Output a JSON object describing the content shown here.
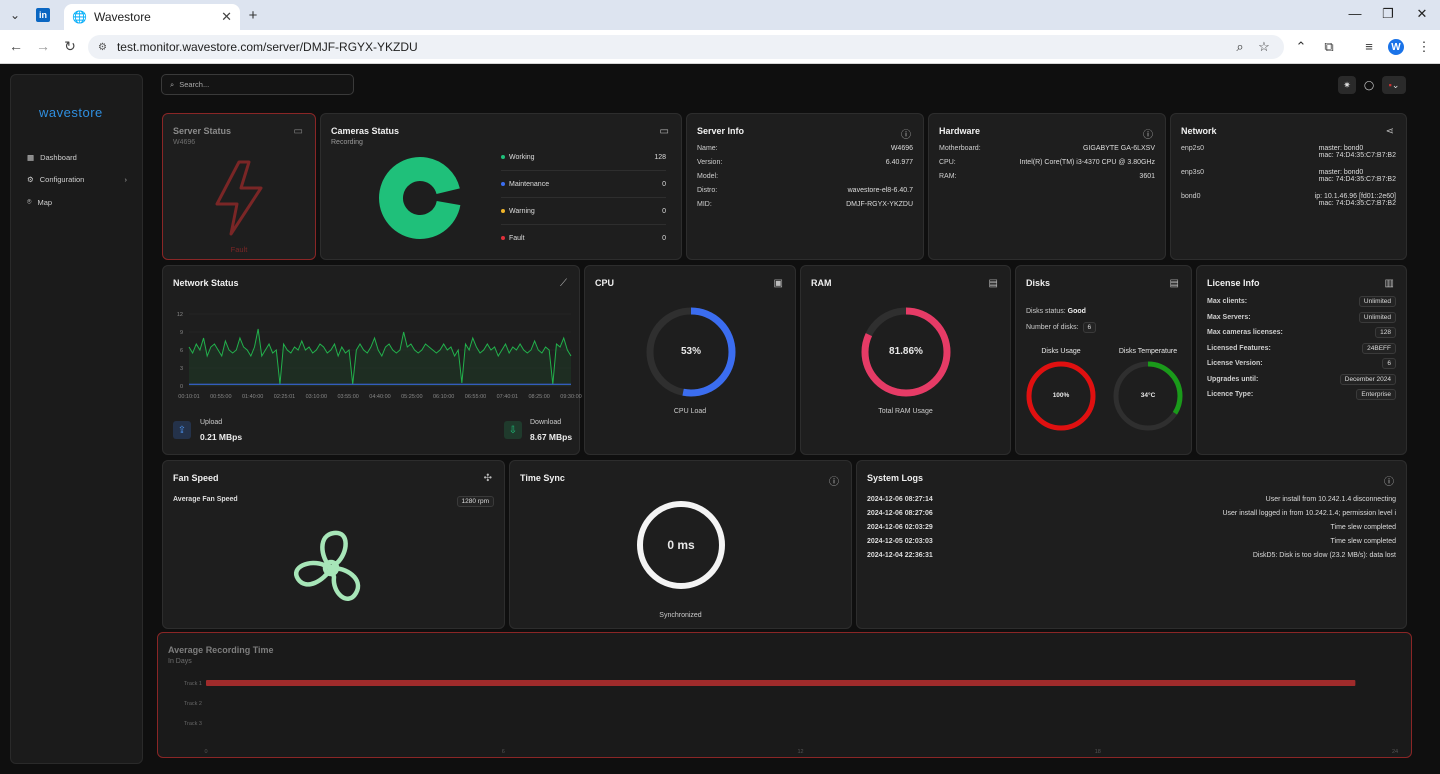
{
  "browser": {
    "tab_title": "Wavestore",
    "url": "test.monitor.wavestore.com/server/DMJF-RGYX-YKZDU",
    "profile_initial": "W"
  },
  "app": {
    "logo": "wavestore",
    "search_placeholder": "Search...",
    "sidebar": [
      {
        "label": "Dashboard",
        "icon": "grid-icon"
      },
      {
        "label": "Configuration",
        "icon": "gear-icon"
      },
      {
        "label": "Map",
        "icon": "map-pin-icon"
      }
    ]
  },
  "server_status": {
    "title": "Server Status",
    "id": "W4696",
    "state": "Fault"
  },
  "cameras_status": {
    "title": "Cameras Status",
    "subtitle": "Recording",
    "items": [
      {
        "label": "Working",
        "value": "128",
        "color": "#1fc07a"
      },
      {
        "label": "Maintenance",
        "value": "0",
        "color": "#3b6df0"
      },
      {
        "label": "Warning",
        "value": "0",
        "color": "#f0b429"
      },
      {
        "label": "Fault",
        "value": "0",
        "color": "#e0303a"
      }
    ]
  },
  "server_info": {
    "title": "Server Info",
    "rows": [
      {
        "k": "Name:",
        "v": "W4696"
      },
      {
        "k": "Version:",
        "v": "6.40.977"
      },
      {
        "k": "Model:",
        "v": ""
      },
      {
        "k": "Distro:",
        "v": "wavestore-el8-6.40.7"
      },
      {
        "k": "MID:",
        "v": "DMJF-RGYX-YKZDU"
      }
    ]
  },
  "hardware": {
    "title": "Hardware",
    "rows": [
      {
        "k": "Motherboard:",
        "v": "GIGABYTE GA-6LXSV"
      },
      {
        "k": "CPU:",
        "v": "Intel(R) Core(TM) i3-4370 CPU @ 3.80GHz"
      },
      {
        "k": "RAM:",
        "v": "3601"
      }
    ]
  },
  "network": {
    "title": "Network",
    "interfaces": [
      {
        "name": "enp2s0",
        "l1": "master:  bond0",
        "l2": "mac:  74:D4:35:C7:B7:B2"
      },
      {
        "name": "enp3s0",
        "l1": "master:  bond0",
        "l2": "mac:  74:D4:35:C7:B7:B2"
      },
      {
        "name": "bond0",
        "l1": "ip:  10.1.46.96 [fd01::2e60]",
        "l2": "mac:  74:D4:35:C7:B7:B2"
      }
    ]
  },
  "network_status": {
    "title": "Network Status",
    "upload_label": "Upload",
    "upload_value": "0.21 MBps",
    "download_label": "Download",
    "download_value": "8.67 MBps",
    "chart_data": {
      "type": "line",
      "y_ticks": [
        "12",
        "9",
        "6",
        "3",
        "0"
      ],
      "ylim": [
        0,
        12
      ],
      "x_ticks": [
        "00:10:01",
        "00:55:00",
        "01:40:00",
        "02:25:01",
        "03:10:00",
        "03:55:00",
        "04:40:00",
        "05:25:00",
        "06:10:00",
        "06:55:00",
        "07:40:01",
        "08:25:00",
        "09:30:00"
      ],
      "series": [
        {
          "color": "#22b14c",
          "values": [
            6.5,
            5.5,
            7,
            6,
            8,
            5,
            6.5,
            7,
            6,
            5,
            7.5,
            6,
            5.5,
            6,
            8,
            6.5,
            6,
            5,
            6.5,
            9.5,
            5,
            6,
            7,
            5.5,
            6,
            0.3,
            7,
            6,
            5.5,
            6.5,
            6,
            7.5,
            6,
            6.5,
            5.5,
            6,
            7,
            6.5,
            5.5,
            6,
            7,
            5,
            6.5,
            5.5,
            6,
            0.3,
            6,
            7,
            6,
            5.5,
            6.5,
            8,
            6,
            5,
            6.5,
            7,
            6,
            5.5,
            6,
            9,
            6.5,
            7,
            6,
            5.5,
            6,
            7,
            6.5,
            6,
            5.5,
            6,
            7,
            6,
            6.5,
            5,
            6,
            0.5,
            7,
            6,
            8,
            6.5,
            5.5,
            6,
            7,
            6,
            6.5,
            5,
            6,
            7,
            5.5,
            6.5,
            6,
            7,
            6,
            5.5,
            6,
            7.5,
            6,
            5.5,
            6.5,
            6,
            0.3,
            7,
            6.5,
            8,
            6,
            5
          ]
        },
        {
          "color": "#3b6df0",
          "values": [
            0.3,
            0.3,
            0.3,
            0.3,
            0.3,
            0.3,
            0.3,
            0.3,
            0.3,
            0.3,
            0.3,
            0.3,
            0.3
          ]
        }
      ]
    }
  },
  "cpu": {
    "title": "CPU",
    "value": "53%",
    "percent": 53,
    "label": "CPU Load"
  },
  "ram": {
    "title": "RAM",
    "value": "81.86%",
    "percent": 81.86,
    "label": "Total RAM Usage"
  },
  "disks": {
    "title": "Disks",
    "status_label": "Disks status:",
    "status_value": "Good",
    "count_label": "Number of disks:",
    "count_value": "6",
    "usage_label": "Disks Usage",
    "usage_value": "100%",
    "usage_percent": 100,
    "temp_label": "Disks Temperature",
    "temp_value": "34°C",
    "temp_percent": 34
  },
  "license": {
    "title": "License Info",
    "rows": [
      {
        "k": "Max clients:",
        "v": "Unlimited"
      },
      {
        "k": "Max Servers:",
        "v": "Unlimited"
      },
      {
        "k": "Max cameras licenses:",
        "v": "128"
      },
      {
        "k": "Licensed Features:",
        "v": "24BEFF"
      },
      {
        "k": "License Version:",
        "v": "6"
      },
      {
        "k": "Upgrades until:",
        "v": "December 2024"
      },
      {
        "k": "Licence Type:",
        "v": "Enterprise"
      }
    ]
  },
  "fan": {
    "title": "Fan Speed",
    "label": "Average Fan Speed",
    "value": "1280 rpm"
  },
  "time_sync": {
    "title": "Time Sync",
    "value": "0 ms",
    "status": "Synchronized"
  },
  "logs": {
    "title": "System Logs",
    "entries": [
      {
        "time": "2024-12-06 08:27:14",
        "msg": "User install from 10.242.1.4 disconnecting"
      },
      {
        "time": "2024-12-06 08:27:06",
        "msg": "User install logged in from 10.242.1.4; permission level i"
      },
      {
        "time": "2024-12-06 02:03:29",
        "msg": "Time slew completed"
      },
      {
        "time": "2024-12-05 02:03:03",
        "msg": "Time slew completed"
      },
      {
        "time": "2024-12-04 22:36:31",
        "msg": "DiskD5: Disk is too slow (23.2 MB/s): data lost"
      }
    ]
  },
  "recording": {
    "title": "Average Recording Time",
    "subtitle": "In Days",
    "chart_data": {
      "type": "bar",
      "orientation": "horizontal",
      "categories": [
        "Track 1",
        "Track 2",
        "Track 3"
      ],
      "values": [
        23.2,
        0,
        0
      ],
      "x_ticks": [
        "0",
        "6",
        "12",
        "18",
        "24"
      ],
      "xlim": [
        0,
        24
      ],
      "color": "#a02b2b"
    }
  }
}
